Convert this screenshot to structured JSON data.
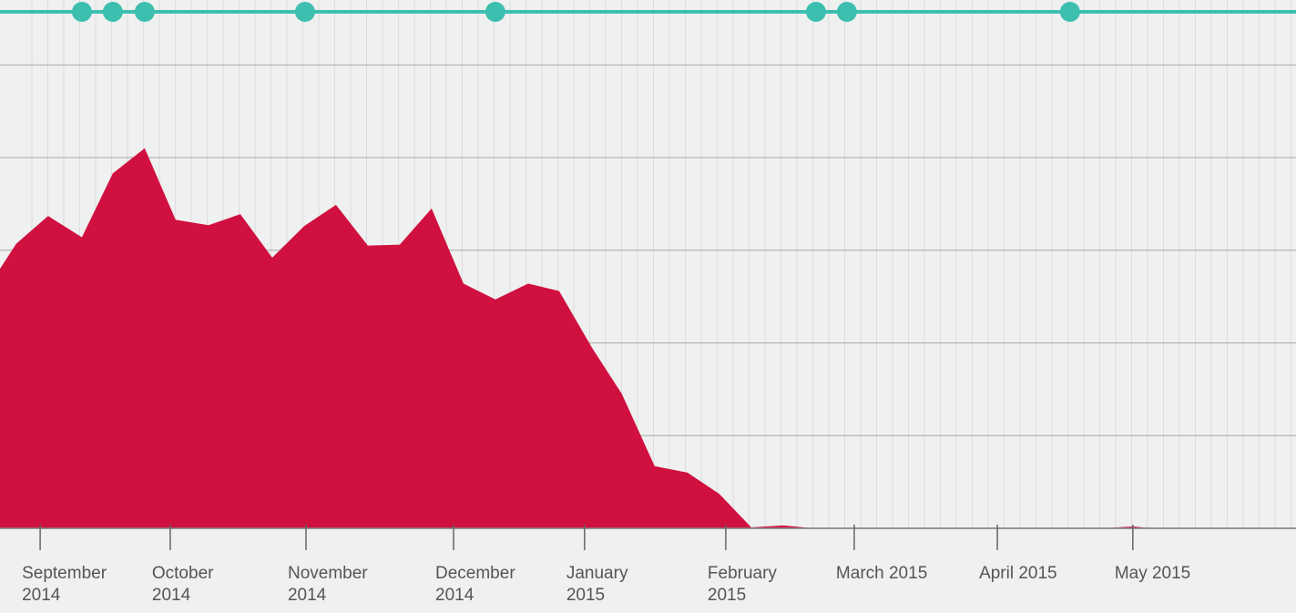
{
  "chart_data": {
    "type": "area",
    "color": "#d0103f",
    "event_color": "#3dbfb0",
    "grid": true,
    "xlim": [
      0,
      40.66
    ],
    "ylim": [
      0,
      5.7
    ],
    "yticks": [
      0,
      1,
      2,
      3,
      4,
      5
    ],
    "xticks": [
      {
        "value": 1.26,
        "label": "September 2014"
      },
      {
        "value": 5.34,
        "label": "October 2014"
      },
      {
        "value": 9.6,
        "label": "November 2014"
      },
      {
        "value": 14.23,
        "label": "December 2014"
      },
      {
        "value": 18.34,
        "label": "January 2015"
      },
      {
        "value": 22.77,
        "label": "February 2015"
      },
      {
        "value": 26.8,
        "label": "March 2015"
      },
      {
        "value": 31.29,
        "label": "April 2015"
      },
      {
        "value": 35.54,
        "label": "May 2015"
      }
    ],
    "x": [
      0,
      0.51,
      1.51,
      2.57,
      3.54,
      4.54,
      5.51,
      6.54,
      7.54,
      8.54,
      9.54,
      10.54,
      11.54,
      12.54,
      13.54,
      14.54,
      15.54,
      16.57,
      17.54,
      18.57,
      19.51,
      20.54,
      21.57,
      22.57,
      23.57,
      24.57,
      25.57,
      34.57,
      35.54,
      36.14,
      40.66
    ],
    "values": [
      2.8,
      3.07,
      3.37,
      3.14,
      3.83,
      4.1,
      3.33,
      3.27,
      3.39,
      2.92,
      3.26,
      3.49,
      3.05,
      3.06,
      3.45,
      2.64,
      2.47,
      2.64,
      2.56,
      1.95,
      1.45,
      0.67,
      0.6,
      0.37,
      0.01,
      0.03,
      0,
      0,
      0.02,
      0,
      0
    ],
    "events": [
      2.57,
      3.54,
      4.54,
      9.57,
      15.54,
      25.6,
      26.57,
      33.57
    ]
  }
}
